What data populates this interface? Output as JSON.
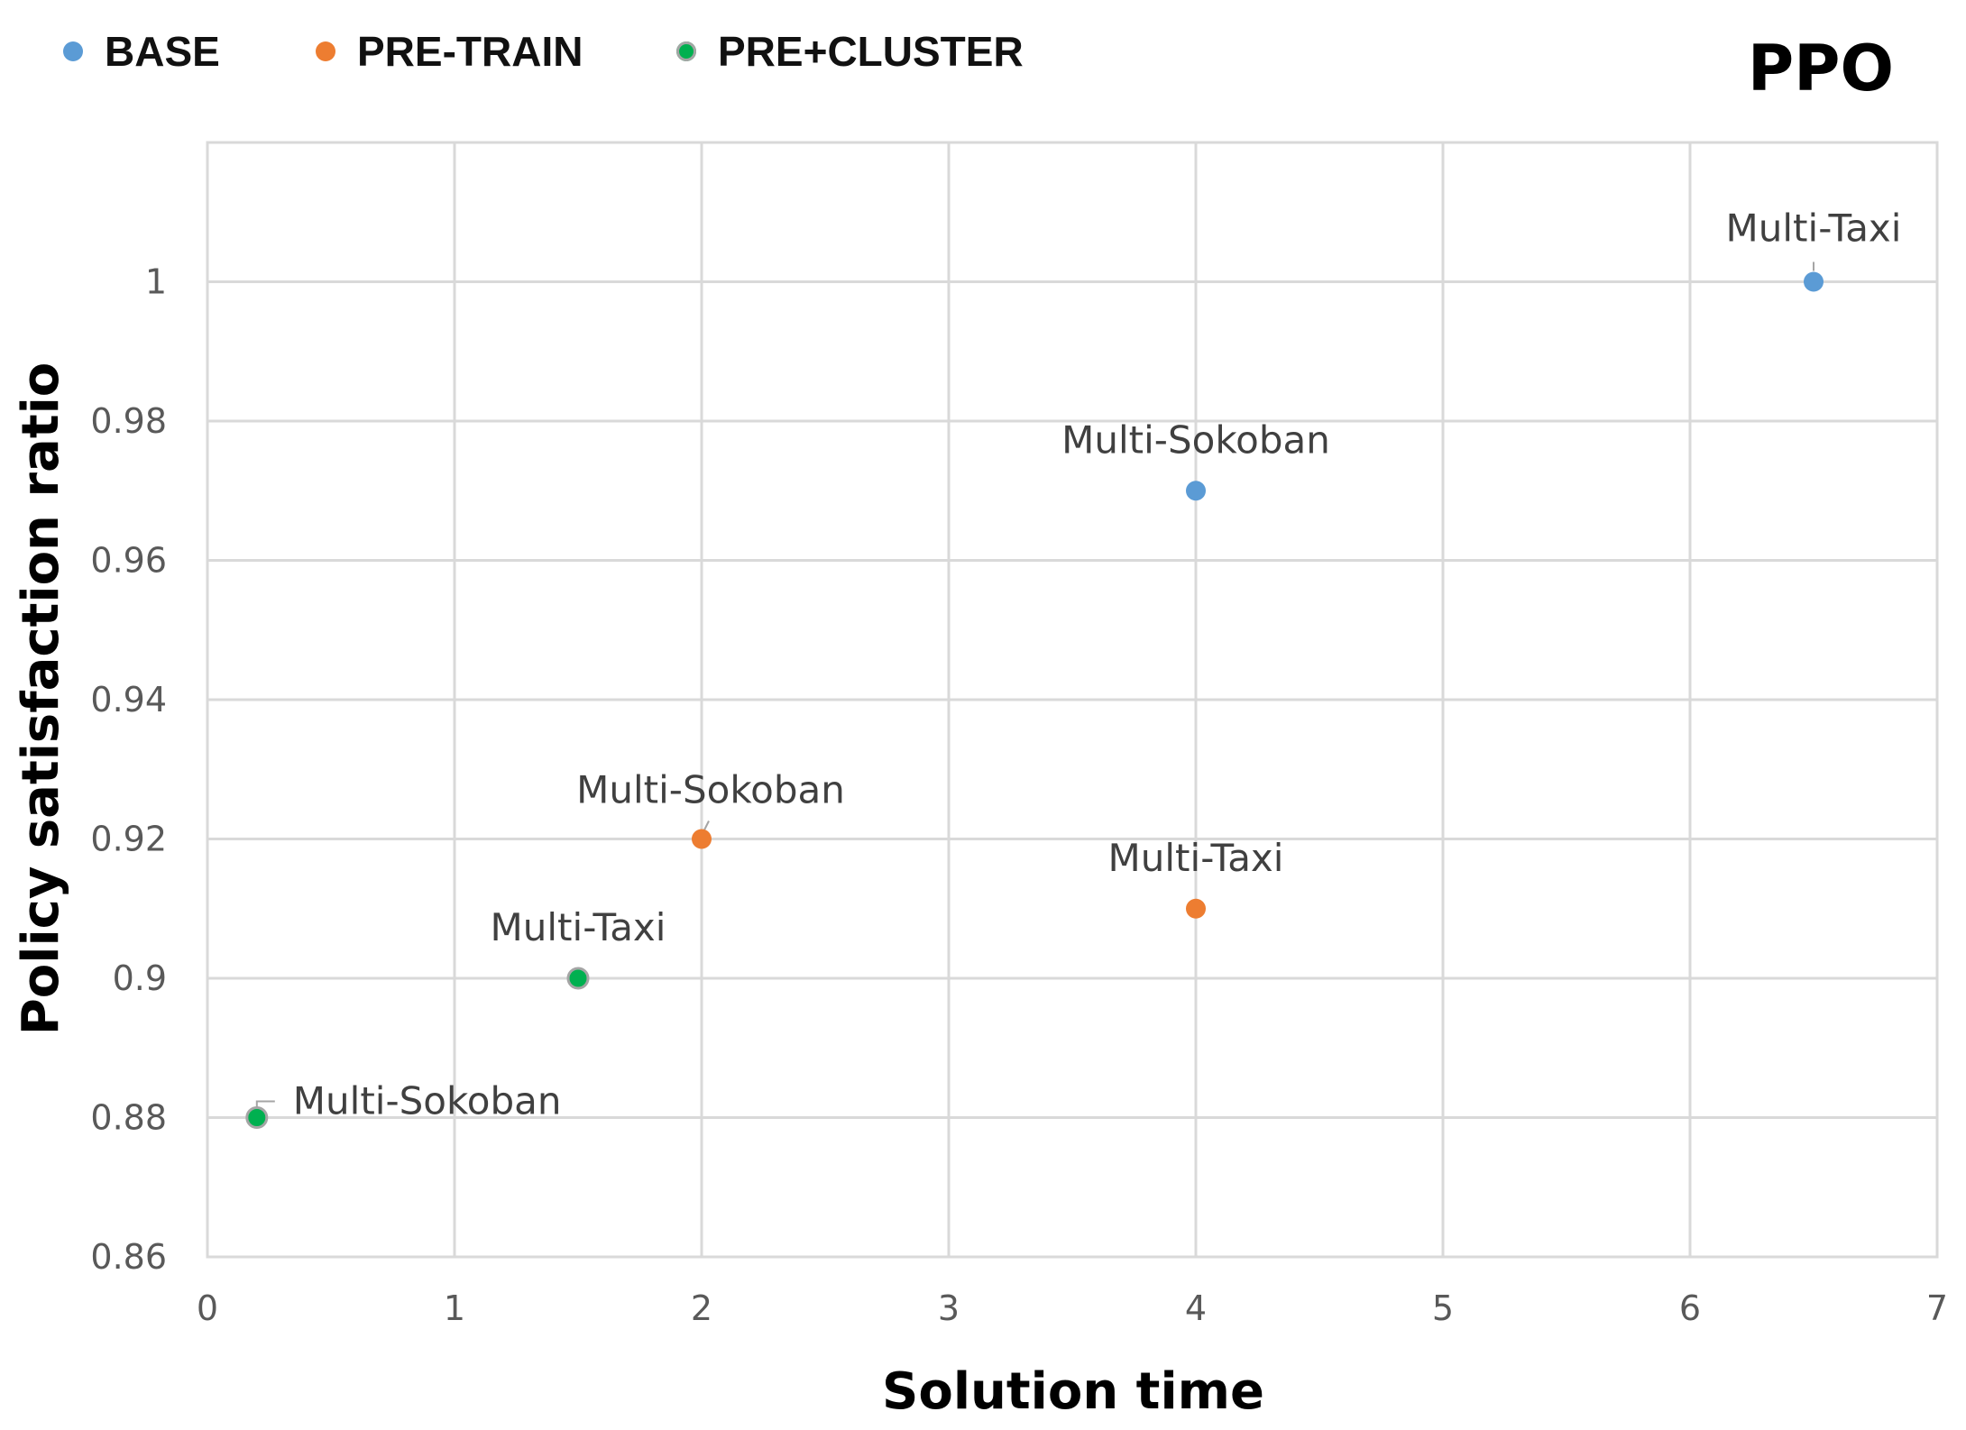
{
  "chart_data": {
    "type": "scatter",
    "title": "PPO",
    "xlabel": "Solution time",
    "ylabel": "Policy satisfaction ratio",
    "xlim": [
      0,
      7
    ],
    "ylim": [
      0.86,
      1.02
    ],
    "x_ticks": [
      "0",
      "1",
      "2",
      "3",
      "4",
      "5",
      "6",
      "7"
    ],
    "y_ticks": [
      "0.86",
      "0.88",
      "0.9",
      "0.92",
      "0.94",
      "0.96",
      "0.98",
      "1"
    ],
    "grid": true,
    "legend_position": "top-left",
    "series": [
      {
        "name": "BASE",
        "color": "#5B9BD5",
        "points": [
          {
            "x": 4,
            "y": 0.97,
            "label": "Multi-Sokoban"
          },
          {
            "x": 6.5,
            "y": 1.0,
            "label": "Multi-Taxi"
          }
        ]
      },
      {
        "name": "PRE-TRAIN",
        "color": "#ED7D31",
        "points": [
          {
            "x": 2,
            "y": 0.92,
            "label": "Multi-Sokoban"
          },
          {
            "x": 4,
            "y": 0.91,
            "label": "Multi-Taxi"
          }
        ]
      },
      {
        "name": "PRE+CLUSTER",
        "color": "#00B050",
        "points": [
          {
            "x": 0.2,
            "y": 0.88,
            "label": "Multi-Sokoban"
          },
          {
            "x": 1.5,
            "y": 0.9,
            "label": "Multi-Taxi"
          }
        ]
      }
    ]
  }
}
